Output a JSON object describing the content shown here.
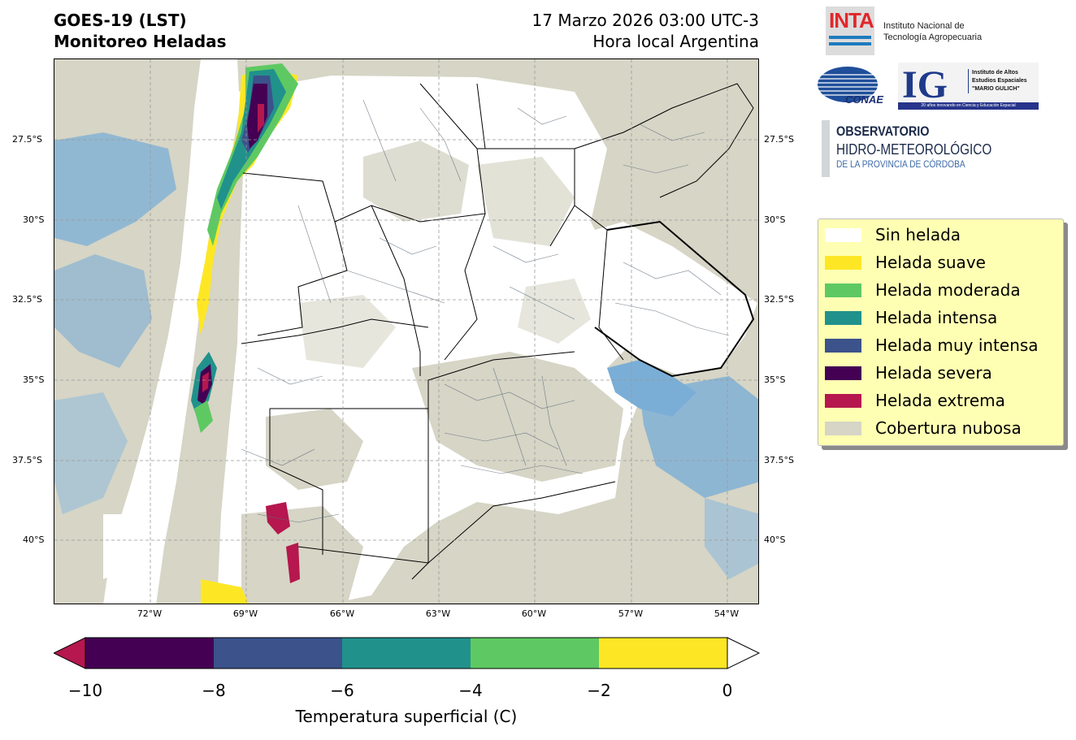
{
  "header": {
    "title_line1": "GOES-19 (LST)",
    "title_line2": "Monitoreo Heladas",
    "date_line1": "17 Marzo 2026 03:00 UTC-3",
    "date_line2": "Hora local Argentina"
  },
  "map": {
    "lat_ticks": [
      "27.5°S",
      "30°S",
      "32.5°S",
      "35°S",
      "37.5°S",
      "40°S"
    ],
    "lon_ticks": [
      "72°W",
      "69°W",
      "66°W",
      "63°W",
      "60°W",
      "57°W",
      "54°W"
    ],
    "colors": {
      "cloud": "#d6d5c6",
      "no_frost": "#ffffff",
      "water": "#7aaed6"
    }
  },
  "colorbar": {
    "ticks": [
      "−10",
      "−8",
      "−6",
      "−4",
      "−2",
      "0"
    ],
    "label": "Temperatura superficial (C)",
    "colors": [
      "#440154",
      "#3b528b",
      "#21918c",
      "#5ec962",
      "#fde725"
    ],
    "under_color": "#b5174e",
    "over_color": "#ffffff"
  },
  "logos": {
    "inta_mark": "INTA",
    "inta_name_line1": "Instituto Nacional de",
    "inta_name_line2": "Tecnología Agropecuaria",
    "conae_mark": "CONAE",
    "ig_mark": "IG",
    "ig_line1": "Instituto de Altos",
    "ig_line2": "Estudios Espaciales",
    "ig_line3": "\"MARIO GULICH\"",
    "ig_band": "20 años innovando en Ciencia y Educación Espacial",
    "obs_line1": "OBSERVATORIO",
    "obs_line2": "HIDRO-METEOROLÓGICO",
    "obs_line3": "DE LA PROVINCIA DE CÓRDOBA"
  },
  "legend": {
    "items": [
      {
        "label": "Sin helada",
        "color": "#ffffff"
      },
      {
        "label": "Helada suave",
        "color": "#fde725"
      },
      {
        "label": "Helada moderada",
        "color": "#5ec962"
      },
      {
        "label": "Helada intensa",
        "color": "#21918c"
      },
      {
        "label": "Helada muy intensa",
        "color": "#3b528b"
      },
      {
        "label": "Helada severa",
        "color": "#440154"
      },
      {
        "label": "Helada extrema",
        "color": "#b5174e"
      },
      {
        "label": "Cobertura nubosa",
        "color": "#d6d5c6"
      }
    ]
  }
}
